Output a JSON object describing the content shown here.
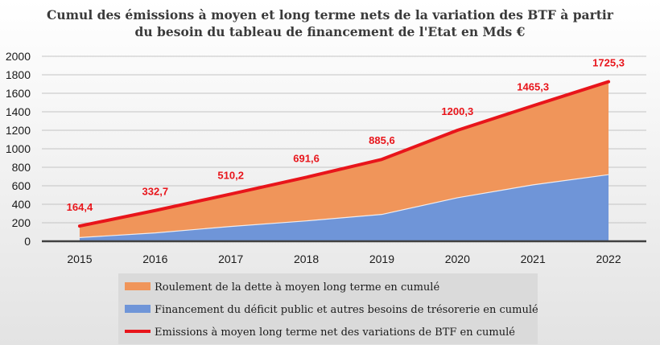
{
  "chart_data": {
    "type": "area",
    "title_lines": [
      "Cumul des émissions à moyen et long terme nets de la variation des BTF à partir",
      "du besoin du tableau de financement de l'Etat en Mds €"
    ],
    "categories": [
      "2015",
      "2016",
      "2017",
      "2018",
      "2019",
      "2020",
      "2021",
      "2022"
    ],
    "ylim": [
      0,
      2000
    ],
    "yticks": [
      0,
      200,
      400,
      600,
      800,
      1000,
      1200,
      1400,
      1600,
      1800,
      2000
    ],
    "grid": true,
    "legend_position": "bottom",
    "series": [
      {
        "name": "Roulement de la dette à moyen long terme en cumulé",
        "kind": "stacked-area",
        "color": "#f0955a",
        "values": [
          124.4,
          242.7,
          350.2,
          471.6,
          595.6,
          730.3,
          855.3,
          1005.3
        ]
      },
      {
        "name": "Financement du déficit public et autres besoins de trésorerie en cumulé",
        "kind": "stacked-area",
        "color": "#6f95d8",
        "values": [
          40,
          90,
          160,
          220,
          290,
          470,
          610,
          720
        ]
      },
      {
        "name": "Emissions à moyen long terme net des variations de BTF en cumulé",
        "kind": "line",
        "color": "#e8151b",
        "values": [
          164.4,
          332.7,
          510.2,
          691.6,
          885.6,
          1200.3,
          1465.3,
          1725.3
        ],
        "labels": [
          "164,4",
          "332,7",
          "510,2",
          "691,6",
          "885,6",
          "1200,3",
          "1465,3",
          "1725,3"
        ]
      }
    ]
  }
}
